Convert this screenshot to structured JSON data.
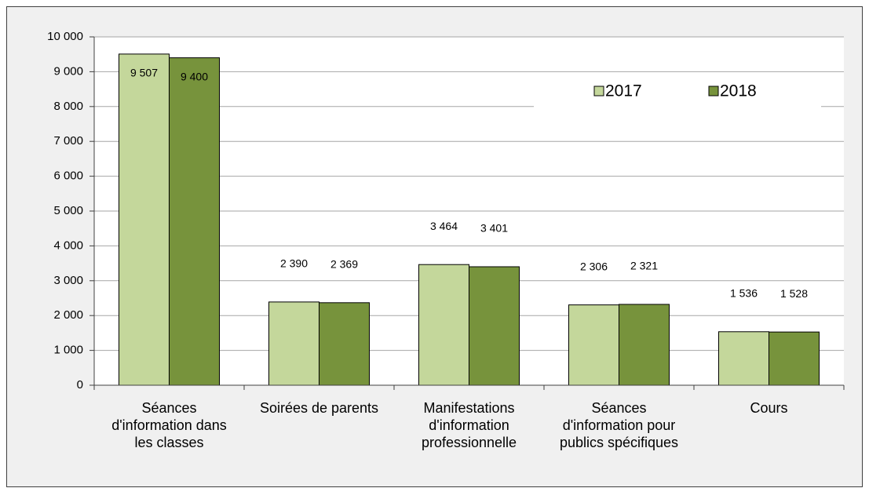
{
  "chart_data": {
    "type": "bar",
    "categories": [
      "Séances d'information dans les classes",
      "Soirées de parents",
      "Manifestations d'information professionnelle",
      "Séances d'information pour publics spécifiques",
      "Cours"
    ],
    "series": [
      {
        "name": "2017",
        "color": "#c4d79b",
        "values": [
          9507,
          2390,
          3464,
          2306,
          1536
        ],
        "value_labels": [
          "9 507",
          "2 390",
          "3 464",
          "2 306",
          "1 536"
        ]
      },
      {
        "name": "2018",
        "color": "#77933c",
        "values": [
          9400,
          2369,
          3401,
          2321,
          1528
        ],
        "value_labels": [
          "9 400",
          "2 369",
          "3 401",
          "2 321",
          "1 528"
        ]
      }
    ],
    "ylim": [
      0,
      10000
    ],
    "yticks": [
      0,
      {
        "value": 1000,
        "label": "1 000"
      },
      {
        "value": 2000,
        "label": "2 000"
      },
      {
        "value": 3000,
        "label": "3 000"
      },
      {
        "value": 4000,
        "label": "4 000"
      },
      {
        "value": 5000,
        "label": "5 000"
      },
      {
        "value": 6000,
        "label": "6 000"
      },
      {
        "value": 7000,
        "label": "7 000"
      },
      {
        "value": 8000,
        "label": "8 000"
      },
      {
        "value": 9000,
        "label": "9 000"
      },
      {
        "value": 10000,
        "label": "10 000"
      }
    ],
    "grid": true,
    "legend": "top-right"
  }
}
